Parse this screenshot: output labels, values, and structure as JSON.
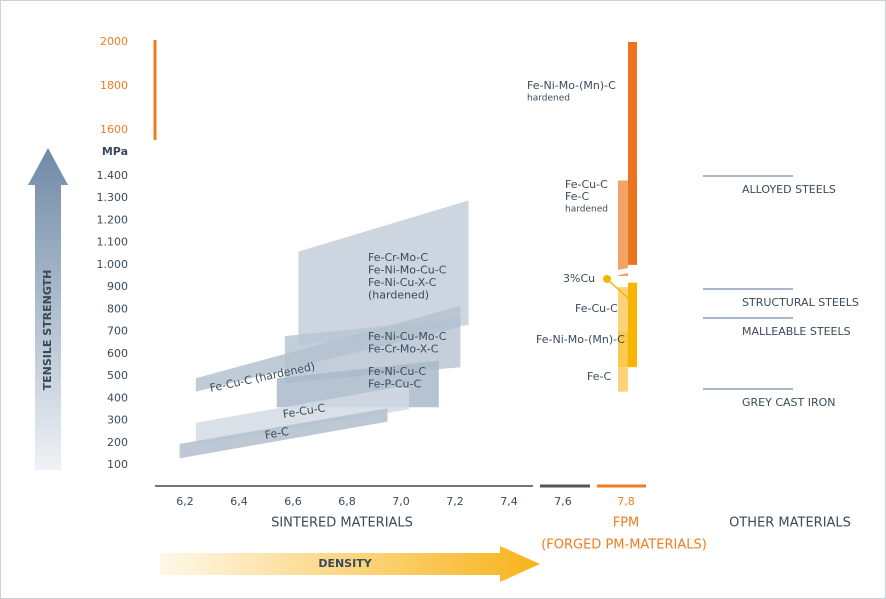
{
  "y_axis": {
    "title": "TENSILE STRENGTH",
    "unit": "MPa",
    "ticks": [
      100,
      200,
      300,
      400,
      500,
      600,
      700,
      800,
      900,
      {
        "value": 1000,
        "label": "1.000"
      },
      {
        "value": 1100,
        "label": "1.100"
      },
      {
        "value": 1200,
        "label": "1.200"
      },
      {
        "value": 1300,
        "label": "1.300"
      },
      {
        "value": 1400,
        "label": "1.400"
      }
    ],
    "upper_ticks": [
      1600,
      1800,
      2000
    ]
  },
  "x_axis": {
    "title": "DENSITY",
    "ticks": [
      {
        "value": 6.2,
        "label": "6,2"
      },
      {
        "value": 6.4,
        "label": "6,4"
      },
      {
        "value": 6.6,
        "label": "6,6"
      },
      {
        "value": 6.8,
        "label": "6,8"
      },
      {
        "value": 7.0,
        "label": "7,0"
      },
      {
        "value": 7.2,
        "label": "7,2"
      },
      {
        "value": 7.4,
        "label": "7,4"
      },
      {
        "value": 7.6,
        "label": "7,6"
      },
      {
        "value": 7.8,
        "label": "7,8"
      }
    ]
  },
  "groups": {
    "sintered": "SINTERED MATERIALS",
    "fpm": "FPM",
    "fpm_full": "(FORGED PM-MATERIALS)",
    "other": "OTHER MATERIALS"
  },
  "regions": [
    {
      "label": [
        "Fe-Cr-Mo-C",
        "Fe-Ni-Mo-Cu-C",
        "Fe-Ni-Cu-X-C",
        "(hardened)"
      ],
      "density": [
        6.62,
        7.25
      ],
      "left": [
        640,
        1060
      ],
      "right": [
        730,
        1290
      ]
    },
    {
      "label": [
        "Fe-Ni-Cu-Mo-C",
        "Fe-Cr-Mo-X-C"
      ],
      "density": [
        6.57,
        7.22
      ],
      "left": [
        470,
        680
      ],
      "right": [
        540,
        760
      ]
    },
    {
      "label": [
        "Fe-Cu-C (hardened)"
      ],
      "density": [
        6.24,
        7.22
      ],
      "left": [
        430,
        490
      ],
      "right": [
        720,
        815
      ]
    },
    {
      "label": [
        "Fe-Ni-Cu-C",
        "Fe-P-Cu-C"
      ],
      "density": [
        6.54,
        7.14
      ],
      "left": [
        360,
        490
      ],
      "right": [
        360,
        570
      ]
    },
    {
      "label": [
        "Fe-Cu-C"
      ],
      "density": [
        6.24,
        7.03
      ],
      "left": [
        195,
        290
      ],
      "right": [
        350,
        460
      ]
    },
    {
      "label": [
        "Fe-C"
      ],
      "density": [
        6.18,
        6.95
      ],
      "left": [
        130,
        195
      ],
      "right": [
        295,
        355
      ]
    }
  ],
  "fpm": [
    {
      "label": [
        "Fe-Ni-Mo-(Mn)-C",
        "hardened"
      ],
      "range": [
        1000,
        2000
      ],
      "color": "#ea7420"
    },
    {
      "label": [
        "Fe-Cu-C",
        "Fe-C",
        "hardened"
      ],
      "range": [
        950,
        1380
      ],
      "color": "#f2a468"
    },
    {
      "label": [
        "3%Cu"
      ],
      "range": [
        540,
        920
      ],
      "color": "#f7b500"
    },
    {
      "label": [
        "Fe-Cu-C"
      ],
      "range": [
        620,
        900
      ],
      "color": "#fcd37a"
    },
    {
      "label": [
        "Fe-Ni-Mo-(Mn)-C"
      ],
      "range": [
        540,
        700
      ],
      "color": "#fcc84f"
    },
    {
      "label": [
        "Fe-C"
      ],
      "range": [
        430,
        540
      ],
      "color": "#fcd37a"
    }
  ],
  "other": [
    {
      "label": "ALLOYED STEELS",
      "value": 1400
    },
    {
      "label": "STRUCTURAL STEELS",
      "value": 892
    },
    {
      "label": "MALLEABLE STEELS",
      "value": 761
    },
    {
      "label": "GREY CAST IRON",
      "value": 442
    }
  ]
}
